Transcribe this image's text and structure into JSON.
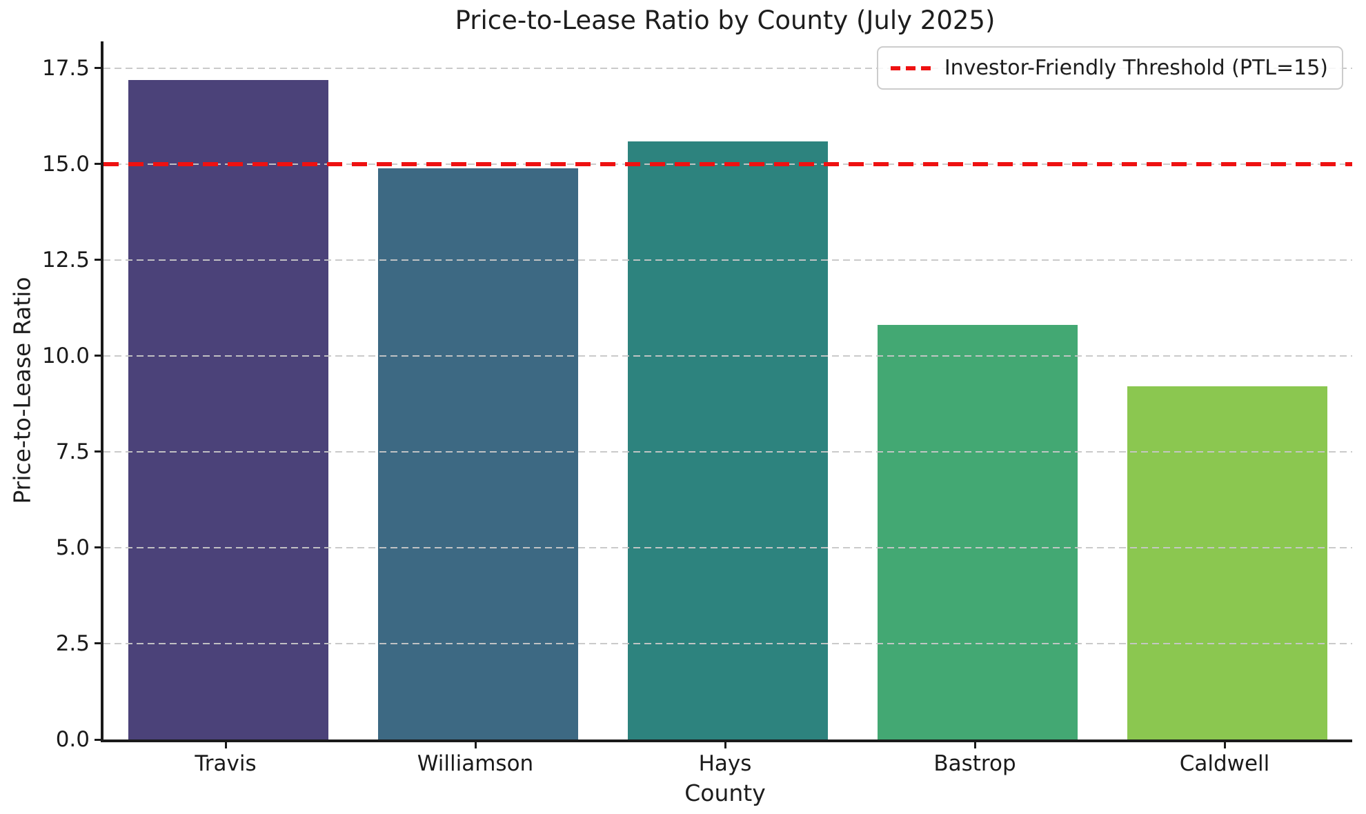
{
  "chart_data": {
    "type": "bar",
    "title": "Price-to-Lease Ratio by County (July 2025)",
    "xlabel": "County",
    "ylabel": "Price-to-Lease Ratio",
    "categories": [
      "Travis",
      "Williamson",
      "Hays",
      "Bastrop",
      "Caldwell"
    ],
    "values": [
      17.2,
      14.9,
      15.6,
      10.8,
      9.2
    ],
    "bar_colors": [
      "#4b4279",
      "#3d6983",
      "#2d837e",
      "#43a873",
      "#8bc750"
    ],
    "ylim": [
      0,
      18.2
    ],
    "yticks": [
      0,
      2.5,
      5,
      7.5,
      10,
      12.5,
      15,
      17.5
    ],
    "ytick_labels": [
      "0.0",
      "2.5",
      "5.0",
      "7.5",
      "10.0",
      "12.5",
      "15.0",
      "17.5"
    ],
    "grid": "horizontal dashed, drawn over bars",
    "legend_position": "upper right",
    "threshold_line": {
      "y": 15,
      "label": "Investor-Friendly Threshold (PTL=15)",
      "color": "#ee1111",
      "style": "dashed"
    }
  }
}
